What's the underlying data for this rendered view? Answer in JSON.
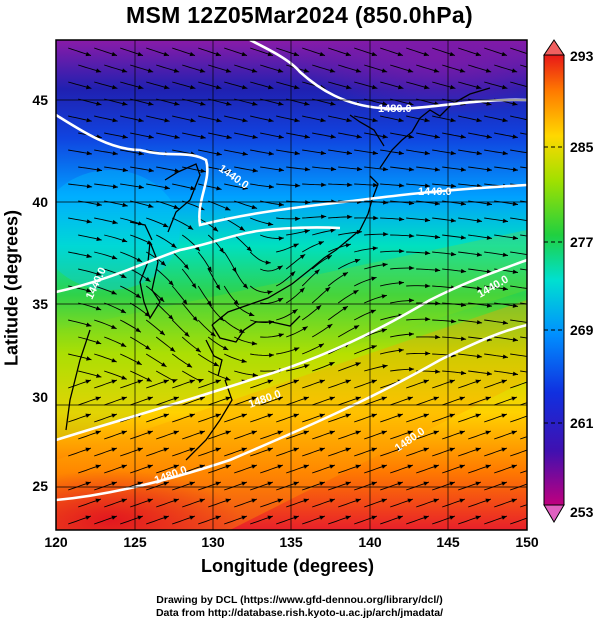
{
  "title": "MSM 12Z05Mar2024 (850.0hPa)",
  "x_axis": {
    "label": "Longitude (degrees)",
    "ticks": [
      "120",
      "125",
      "130",
      "135",
      "140",
      "145",
      "150"
    ]
  },
  "y_axis": {
    "label": "Latitude  (degrees)",
    "ticks": [
      "45",
      "40",
      "35",
      "30",
      "25"
    ]
  },
  "colorbar": {
    "ticks": [
      "293",
      "285",
      "277",
      "269",
      "261",
      "253"
    ]
  },
  "contour_labels": [
    "1480.0",
    "1440.0",
    "1440.0",
    "1440.0",
    "1440.0",
    "1480.0",
    "1480.0",
    "1480.0"
  ],
  "credits": {
    "line1": "Drawing by DCL (https://www.gfd-dennou.org/library/dcl/)",
    "line2": "Data from http://database.rish.kyoto-u.ac.jp/arch/jmadata/"
  },
  "colors": {
    "warm": "#e8202a",
    "cold": "#8a1ba8",
    "contour": "#ffffff",
    "streamline": "#000000"
  }
}
